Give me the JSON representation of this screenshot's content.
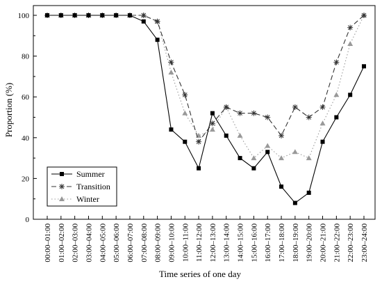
{
  "chart_data": {
    "type": "line",
    "xlabel": "Time series of one day",
    "ylabel": "Proportion (%)",
    "ylim": [
      0,
      100
    ],
    "yticks": [
      0,
      20,
      40,
      60,
      80,
      100
    ],
    "grid": false,
    "legend_position": "bottom-left",
    "categories": [
      "00:00–01:00",
      "01:00–02:00",
      "02:00–03:00",
      "03:00–04:00",
      "04:00–05:00",
      "05:00–06:00",
      "06:00–07:00",
      "07:00–08:00",
      "08:00–09:00",
      "09:00–10:00",
      "10:00–11:00",
      "11:00–12:00",
      "12:00–13:00",
      "13:00–14:00",
      "14:00–15:00",
      "15:00–16:00",
      "16:00–17:00",
      "17:00–18:00",
      "18:00–19:00",
      "19:00–20:00",
      "20:00–21:00",
      "21:00–22:00",
      "22:00–23:00",
      "23:00–24:00"
    ],
    "series": [
      {
        "name": "Summer",
        "line_style": "solid",
        "marker": "square",
        "color": "#000000",
        "values": [
          100,
          100,
          100,
          100,
          100,
          100,
          100,
          97,
          88,
          44,
          38,
          25,
          52,
          41,
          30,
          25,
          33,
          16,
          8,
          13,
          38,
          50,
          61,
          75
        ]
      },
      {
        "name": "Transition",
        "line_style": "dashed",
        "marker": "asterisk",
        "color": "#333333",
        "values": [
          100,
          100,
          100,
          100,
          100,
          100,
          100,
          100,
          97,
          77,
          61,
          38,
          47,
          55,
          52,
          52,
          50,
          41,
          55,
          50,
          55,
          77,
          94,
          100
        ]
      },
      {
        "name": "Winter",
        "line_style": "dotted",
        "marker": "triangle",
        "color": "#999999",
        "values": [
          100,
          100,
          100,
          100,
          100,
          100,
          100,
          100,
          97,
          72,
          52,
          41,
          44,
          55,
          41,
          30,
          36,
          30,
          33,
          30,
          47,
          61,
          86,
          100
        ]
      }
    ]
  }
}
